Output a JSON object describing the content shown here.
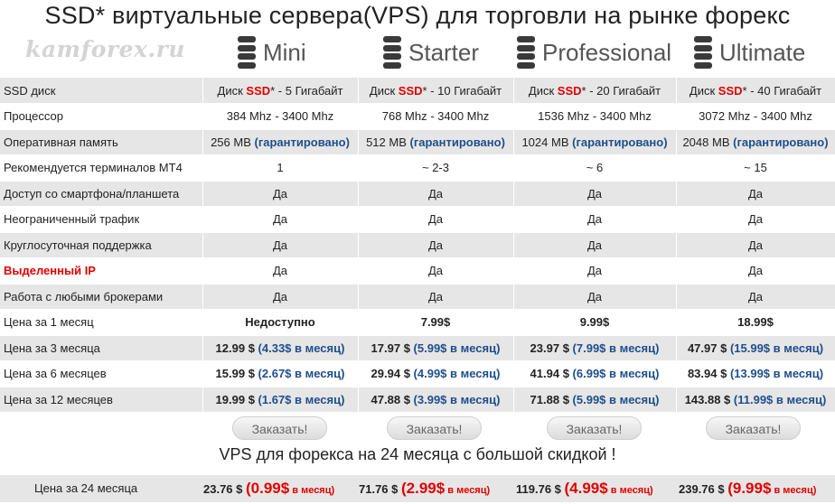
{
  "title": "SSD* виртуальные сервера(VPS) для торговли на рынке форекс",
  "watermark": "kamforex.ru",
  "plans": [
    {
      "name": "Mini"
    },
    {
      "name": "Starter"
    },
    {
      "name": "Professional"
    },
    {
      "name": "Ultimate"
    }
  ],
  "table": {
    "rows": [
      {
        "label": "SSD диск",
        "cells": [
          {
            "a": "Диск ",
            "hl": "SSD",
            "b": "* - 5 Гигабайт"
          },
          {
            "a": "Диск ",
            "hl": "SSD",
            "b": "* - 10 Гигабайт"
          },
          {
            "a": "Диск ",
            "hl": "SSD",
            "b": "* - 20 Гигабайт"
          },
          {
            "a": "Диск ",
            "hl": "SSD",
            "b": "* - 40 Гигабайт"
          }
        ]
      },
      {
        "label": "Процессор",
        "cells": [
          {
            "text": "384 Mhz - 3400 Mhz"
          },
          {
            "text": "768 Mhz - 3400 Mhz"
          },
          {
            "text": "1536 Mhz - 3400 Mhz"
          },
          {
            "text": "3072 Mhz - 3400 Mhz"
          }
        ]
      },
      {
        "label": "Оперативная память",
        "cells": [
          {
            "main": "256 MB ",
            "note": "(гарантировано)"
          },
          {
            "main": "512 MB ",
            "note": "(гарантировано)"
          },
          {
            "main": "1024 MB ",
            "note": "(гарантировано)"
          },
          {
            "main": "2048 MB ",
            "note": "(гарантировано)"
          }
        ]
      },
      {
        "label": "Рекомендуется терминалов MT4",
        "cells": [
          {
            "text": "1"
          },
          {
            "text": "~ 2-3"
          },
          {
            "text": "~ 6"
          },
          {
            "text": "~ 15"
          }
        ]
      },
      {
        "label": "Доступ со смартфона/планшета",
        "cells": [
          {
            "text": "Да"
          },
          {
            "text": "Да"
          },
          {
            "text": "Да"
          },
          {
            "text": "Да"
          }
        ]
      },
      {
        "label": "Неограниченный трафик",
        "cells": [
          {
            "text": "Да"
          },
          {
            "text": "Да"
          },
          {
            "text": "Да"
          },
          {
            "text": "Да"
          }
        ]
      },
      {
        "label": "Круглосуточная поддержка",
        "cells": [
          {
            "text": "Да"
          },
          {
            "text": "Да"
          },
          {
            "text": "Да"
          },
          {
            "text": "Да"
          }
        ]
      },
      {
        "label": "Выделенный IP",
        "cells": [
          {
            "text": "Да"
          },
          {
            "text": "Да"
          },
          {
            "text": "Да"
          },
          {
            "text": "Да"
          }
        ]
      },
      {
        "label": "Работа с любыми брокерами",
        "cells": [
          {
            "text": "Да"
          },
          {
            "text": "Да"
          },
          {
            "text": "Да"
          },
          {
            "text": "Да"
          }
        ]
      },
      {
        "label": "Цена за 1 месяц",
        "cells": [
          {
            "text": "Недоступно"
          },
          {
            "text": "7.99$"
          },
          {
            "text": "9.99$"
          },
          {
            "text": "18.99$"
          }
        ]
      },
      {
        "label": "Цена за 3 месяца",
        "cells": [
          {
            "main": "12.99 $ ",
            "note": "(4.33$ в месяц)"
          },
          {
            "main": "17.97 $ ",
            "note": "(5.99$ в месяц)"
          },
          {
            "main": "23.97 $ ",
            "note": "(7.99$ в месяц)"
          },
          {
            "main": "47.97 $ ",
            "note": "(15.99$ в месяц)"
          }
        ]
      },
      {
        "label": "Цена за 6 месяцев",
        "cells": [
          {
            "main": "15.99 $ ",
            "note": "(2.67$ в месяц)"
          },
          {
            "main": "29.94 $ ",
            "note": "(4.99$ в месяц)"
          },
          {
            "main": "41.94 $ ",
            "note": "(6.99$ в месяц)"
          },
          {
            "main": "83.94 $ ",
            "note": "(13.99$ в месяц)"
          }
        ]
      },
      {
        "label": "Цена за 12 месяцев",
        "cells": [
          {
            "main": "19.99 $ ",
            "note": "(1.67$ в месяц)"
          },
          {
            "main": "47.88 $ ",
            "note": "(3.99$ в месяц)"
          },
          {
            "main": "71.88 $ ",
            "note": "(5.99$ в месяц)"
          },
          {
            "main": "143.88 $ ",
            "note": "(11.99$ в месяц)"
          }
        ]
      }
    ]
  },
  "order_label": "Заказать!",
  "promo": "VPS для форекса на 24 месяца с большой скидкой !",
  "price24": {
    "label": "Цена за 24 месяца",
    "cells": [
      {
        "main": "23.76 $ ",
        "big": "(0.99$",
        "small": " в месяц)"
      },
      {
        "main": "71.76 $ ",
        "big": "(2.99$",
        "small": " в месяц)"
      },
      {
        "main": "119.76 $ ",
        "big": "(4.99$",
        "small": " в месяц)"
      },
      {
        "main": "239.76 $ ",
        "big": "(9.99$",
        "small": " в месяц)"
      }
    ]
  },
  "colors": {
    "highlight": "#e00000",
    "accent_blue": "#1f4e8c",
    "row_alt": "#e6e6e6"
  }
}
